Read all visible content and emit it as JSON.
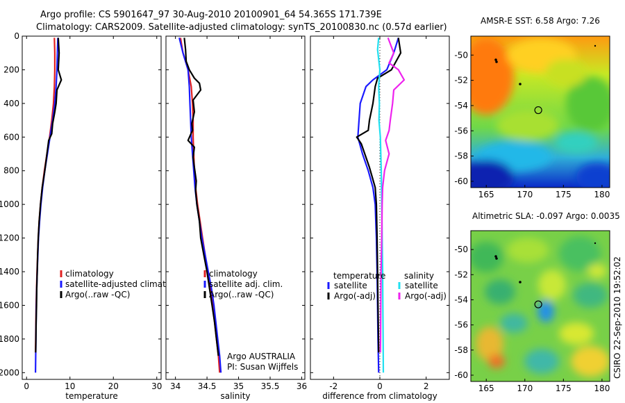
{
  "title": {
    "line1": "Argo profile: CS 5901647_97 30-Aug-2010 20100901_64 54.365S 171.739E",
    "line2": "Climatology: CARS2009. Satellite-adjusted climatology: synTS_20100830.nc (0.57d earlier)"
  },
  "credit": "CSIRO 22-Sep-2010 19:52:02",
  "colors": {
    "climatology": "#e02020",
    "satellite": "#1a1aff",
    "argo": "#000000",
    "sal_satellite": "#22e0f0",
    "sal_argo": "#ee22ee",
    "marker": "#000000"
  },
  "chart_data": [
    {
      "type": "line",
      "name": "temperature",
      "xlabel": "temperature",
      "xlim": [
        -1,
        31
      ],
      "ylim": [
        2040,
        0
      ],
      "xticks": [
        0,
        10,
        20,
        30
      ],
      "yticks": [
        0,
        200,
        400,
        600,
        800,
        1000,
        1200,
        1400,
        1600,
        1800,
        2000
      ],
      "legend": {
        "position": "bottom-right",
        "labels": [
          "climatology",
          "satellite-adjusted climatology",
          "Argo(..raw -QC)"
        ]
      },
      "series": [
        {
          "name": "climatology",
          "color": "#e02020",
          "points": [
            [
              6.4,
              10
            ],
            [
              6.5,
              100
            ],
            [
              6.5,
              200
            ],
            [
              6.4,
              300
            ],
            [
              6.2,
              400
            ],
            [
              5.8,
              500
            ],
            [
              5.3,
              600
            ],
            [
              4.7,
              700
            ],
            [
              4.1,
              800
            ],
            [
              3.6,
              900
            ],
            [
              3.2,
              1000
            ],
            [
              2.9,
              1100
            ],
            [
              2.7,
              1200
            ],
            [
              2.55,
              1300
            ],
            [
              2.4,
              1400
            ],
            [
              2.3,
              1500
            ],
            [
              2.2,
              1600
            ],
            [
              2.15,
              1700
            ],
            [
              2.1,
              1800
            ],
            [
              2.05,
              1880
            ]
          ]
        },
        {
          "name": "satellite-adjusted climatology",
          "color": "#1a1aff",
          "points": [
            [
              7.2,
              10
            ],
            [
              7.1,
              100
            ],
            [
              7.0,
              200
            ],
            [
              6.8,
              300
            ],
            [
              6.5,
              400
            ],
            [
              6.0,
              500
            ],
            [
              5.4,
              600
            ],
            [
              4.8,
              700
            ],
            [
              4.2,
              800
            ],
            [
              3.7,
              900
            ],
            [
              3.3,
              1000
            ],
            [
              3.0,
              1100
            ],
            [
              2.75,
              1200
            ],
            [
              2.6,
              1300
            ],
            [
              2.45,
              1400
            ],
            [
              2.35,
              1500
            ],
            [
              2.25,
              1600
            ],
            [
              2.2,
              1700
            ],
            [
              2.15,
              1800
            ],
            [
              2.1,
              1900
            ],
            [
              2.05,
              2000
            ]
          ]
        },
        {
          "name": "Argo(..raw -QC)",
          "color": "#000000",
          "points": [
            [
              7.3,
              10
            ],
            [
              7.5,
              100
            ],
            [
              7.3,
              200
            ],
            [
              8.0,
              260
            ],
            [
              7.0,
              320
            ],
            [
              6.8,
              400
            ],
            [
              6.5,
              450
            ],
            [
              6.0,
              520
            ],
            [
              5.8,
              580
            ],
            [
              5.1,
              620
            ],
            [
              4.7,
              700
            ],
            [
              4.2,
              800
            ],
            [
              3.6,
              900
            ],
            [
              3.2,
              1000
            ],
            [
              2.9,
              1100
            ],
            [
              2.7,
              1200
            ],
            [
              2.55,
              1300
            ],
            [
              2.45,
              1400
            ],
            [
              2.35,
              1500
            ],
            [
              2.3,
              1600
            ],
            [
              2.2,
              1700
            ],
            [
              2.15,
              1800
            ],
            [
              2.1,
              1880
            ]
          ]
        }
      ]
    },
    {
      "type": "line",
      "name": "salinity",
      "xlabel": "salinity",
      "xlim": [
        33.85,
        36.05
      ],
      "ylim": [
        2040,
        0
      ],
      "xticks": [
        34,
        34.5,
        35,
        35.5,
        36
      ],
      "legend": {
        "position": "bottom-right",
        "labels": [
          "climatology",
          "satellite adj. clim.",
          "Argo(..raw -QC)"
        ]
      },
      "annotation": {
        "line1": "Argo AUSTRALIA",
        "line2": "PI: Susan Wijffels"
      },
      "series": [
        {
          "name": "climatology",
          "color": "#e02020",
          "points": [
            [
              34.08,
              10
            ],
            [
              34.12,
              100
            ],
            [
              34.2,
              200
            ],
            [
              34.25,
              300
            ],
            [
              34.27,
              400
            ],
            [
              34.28,
              500
            ],
            [
              34.28,
              600
            ],
            [
              34.29,
              700
            ],
            [
              34.3,
              800
            ],
            [
              34.32,
              900
            ],
            [
              34.35,
              1000
            ],
            [
              34.39,
              1100
            ],
            [
              34.43,
              1200
            ],
            [
              34.47,
              1300
            ],
            [
              34.51,
              1400
            ],
            [
              34.55,
              1500
            ],
            [
              34.59,
              1600
            ],
            [
              34.62,
              1700
            ],
            [
              34.65,
              1800
            ],
            [
              34.68,
              1900
            ],
            [
              34.7,
              2000
            ]
          ]
        },
        {
          "name": "satellite adj. clim.",
          "color": "#1a1aff",
          "points": [
            [
              34.06,
              10
            ],
            [
              34.12,
              100
            ],
            [
              34.2,
              200
            ],
            [
              34.22,
              300
            ],
            [
              34.23,
              400
            ],
            [
              34.24,
              500
            ],
            [
              34.25,
              600
            ],
            [
              34.27,
              700
            ],
            [
              34.29,
              800
            ],
            [
              34.31,
              900
            ],
            [
              34.34,
              1000
            ],
            [
              34.38,
              1100
            ],
            [
              34.42,
              1200
            ],
            [
              34.47,
              1300
            ],
            [
              34.52,
              1400
            ],
            [
              34.57,
              1500
            ],
            [
              34.61,
              1600
            ],
            [
              34.64,
              1700
            ],
            [
              34.67,
              1800
            ],
            [
              34.7,
              1900
            ],
            [
              34.72,
              2000
            ]
          ]
        },
        {
          "name": "Argo(..raw -QC)",
          "color": "#000000",
          "points": [
            [
              34.14,
              10
            ],
            [
              34.16,
              80
            ],
            [
              34.17,
              150
            ],
            [
              34.22,
              200
            ],
            [
              34.3,
              250
            ],
            [
              34.38,
              280
            ],
            [
              34.4,
              320
            ],
            [
              34.28,
              380
            ],
            [
              34.3,
              450
            ],
            [
              34.26,
              520
            ],
            [
              34.27,
              560
            ],
            [
              34.2,
              620
            ],
            [
              34.3,
              660
            ],
            [
              34.28,
              720
            ],
            [
              34.3,
              780
            ],
            [
              34.33,
              860
            ],
            [
              34.32,
              920
            ],
            [
              34.34,
              1000
            ],
            [
              34.38,
              1100
            ],
            [
              34.4,
              1200
            ],
            [
              34.45,
              1300
            ],
            [
              34.5,
              1400
            ],
            [
              34.54,
              1500
            ],
            [
              34.58,
              1600
            ],
            [
              34.62,
              1700
            ],
            [
              34.65,
              1800
            ],
            [
              34.68,
              1900
            ]
          ]
        }
      ]
    },
    {
      "type": "line",
      "name": "difference",
      "xlabel": "difference from climatology",
      "xlim": [
        -3,
        3
      ],
      "ylim": [
        2040,
        0
      ],
      "xticks": [
        -2,
        0,
        2
      ],
      "legend": {
        "position": "bottom-right",
        "temperature_header": "temperature",
        "salinity_header": "salinity",
        "labels": [
          "satellite",
          "Argo(-adj)",
          "satellite",
          "Argo(-adj)"
        ]
      },
      "series": [
        {
          "name": "temperature satellite",
          "color": "#1a1aff",
          "points": [
            [
              0.8,
              10
            ],
            [
              0.6,
              100
            ],
            [
              0.3,
              200
            ],
            [
              -0.3,
              260
            ],
            [
              -0.6,
              300
            ],
            [
              -0.85,
              400
            ],
            [
              -0.9,
              500
            ],
            [
              -0.95,
              600
            ],
            [
              -0.75,
              700
            ],
            [
              -0.5,
              800
            ],
            [
              -0.3,
              900
            ],
            [
              -0.2,
              1000
            ],
            [
              -0.15,
              1200
            ],
            [
              -0.12,
              1400
            ],
            [
              -0.1,
              1600
            ],
            [
              -0.08,
              1800
            ],
            [
              -0.05,
              2000
            ]
          ]
        },
        {
          "name": "temperature Argo(-adj)",
          "color": "#000000",
          "points": [
            [
              0.8,
              10
            ],
            [
              0.9,
              100
            ],
            [
              0.5,
              200
            ],
            [
              -0.1,
              250
            ],
            [
              -0.2,
              300
            ],
            [
              -0.3,
              400
            ],
            [
              -0.45,
              500
            ],
            [
              -0.5,
              560
            ],
            [
              -1.0,
              600
            ],
            [
              -0.8,
              640
            ],
            [
              -0.65,
              700
            ],
            [
              -0.45,
              780
            ],
            [
              -0.2,
              900
            ],
            [
              -0.15,
              1000
            ],
            [
              -0.12,
              1200
            ],
            [
              -0.1,
              1400
            ],
            [
              -0.08,
              1600
            ],
            [
              -0.06,
              1800
            ],
            [
              -0.05,
              1880
            ]
          ]
        },
        {
          "name": "salinity satellite",
          "color": "#22e0f0",
          "points": [
            [
              -0.05,
              10
            ],
            [
              -0.1,
              80
            ],
            [
              0.0,
              200
            ],
            [
              -0.05,
              300
            ],
            [
              -0.02,
              400
            ],
            [
              -0.04,
              500
            ],
            [
              0.02,
              600
            ],
            [
              0.06,
              800
            ],
            [
              0.08,
              1000
            ],
            [
              0.1,
              1200
            ],
            [
              0.12,
              1400
            ],
            [
              0.13,
              1600
            ],
            [
              0.14,
              1800
            ],
            [
              0.15,
              2000
            ]
          ]
        },
        {
          "name": "salinity Argo(-adj)",
          "color": "#ee22ee",
          "points": [
            [
              0.35,
              10
            ],
            [
              0.6,
              100
            ],
            [
              0.4,
              160
            ],
            [
              0.8,
              200
            ],
            [
              1.05,
              260
            ],
            [
              0.6,
              320
            ],
            [
              0.55,
              400
            ],
            [
              0.45,
              500
            ],
            [
              0.4,
              560
            ],
            [
              0.25,
              620
            ],
            [
              0.4,
              700
            ],
            [
              0.2,
              800
            ],
            [
              0.12,
              900
            ],
            [
              0.1,
              1000
            ],
            [
              0.08,
              1200
            ],
            [
              0.05,
              1400
            ],
            [
              0.04,
              1600
            ],
            [
              0.03,
              1800
            ],
            [
              0.02,
              1880
            ]
          ]
        }
      ]
    },
    {
      "type": "heatmap",
      "name": "sst-map",
      "title": "AMSR-E SST: 6.58 Argo: 7.26",
      "xlim": [
        163,
        181
      ],
      "ylim": [
        -60.5,
        -48.5
      ],
      "xticks": [
        165,
        170,
        175,
        180
      ],
      "yticks": [
        -50,
        -52,
        -54,
        -56,
        -58,
        -60
      ],
      "float_position": [
        171.739,
        -54.365
      ]
    },
    {
      "type": "heatmap",
      "name": "sla-map",
      "title": "Altimetric SLA: -0.097 Argo: 0.0035",
      "xlim": [
        163,
        181
      ],
      "ylim": [
        -60.5,
        -48.5
      ],
      "xticks": [
        165,
        170,
        175,
        180
      ],
      "yticks": [
        -50,
        -52,
        -54,
        -56,
        -58,
        -60
      ],
      "float_position": [
        171.739,
        -54.365
      ]
    }
  ]
}
